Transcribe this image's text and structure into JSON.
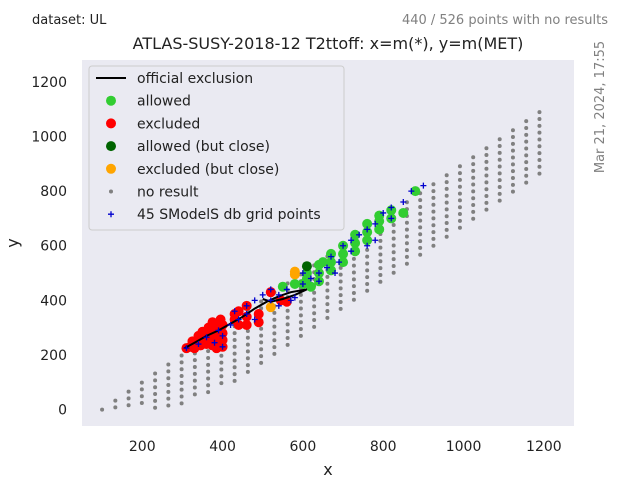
{
  "header": {
    "dataset_label": "dataset: UL",
    "points_info": "440 / 526 points with no results",
    "side_date": "Mar 21, 2024, 17:55"
  },
  "chart_data": {
    "type": "scatter",
    "title": "ATLAS-SUSY-2018-12 T2ttoff: x=m(*), y=m(MET)",
    "xlabel": "x",
    "ylabel": "y",
    "xlim": [
      50,
      1275
    ],
    "ylim": [
      -60,
      1280
    ],
    "xticks": [
      200,
      400,
      600,
      800,
      1000,
      1200
    ],
    "yticks": [
      0,
      200,
      400,
      600,
      800,
      1000,
      1200
    ],
    "grid": false,
    "background": "#eaeaf2",
    "legend_position": "top-left",
    "legend": [
      {
        "label": "official exclusion",
        "kind": "line",
        "color": "#000000"
      },
      {
        "label": "allowed",
        "kind": "dot",
        "color": "#32cd32"
      },
      {
        "label": "excluded",
        "kind": "dot",
        "color": "#ff0000"
      },
      {
        "label": "allowed (but close)",
        "kind": "dot",
        "color": "#006400"
      },
      {
        "label": "excluded (but close)",
        "kind": "dot",
        "color": "#ffa500"
      },
      {
        "label": "no result",
        "kind": "small-dot",
        "color": "#808080"
      },
      {
        "label": "45 SModelS db grid points",
        "kind": "plus",
        "color": "#0000cd"
      }
    ],
    "no_result_grid": {
      "x_start": 100,
      "x_step": 33,
      "x_end": 1200,
      "dy_min": 0,
      "dy_step": 25,
      "dy_max_low": 100,
      "dy_max_high": 225,
      "dy_growth_end_x": 400
    },
    "exclusion_line": [
      [
        305,
        225
      ],
      [
        330,
        245
      ],
      [
        360,
        270
      ],
      [
        390,
        290
      ],
      [
        420,
        315
      ],
      [
        450,
        340
      ],
      [
        480,
        370
      ],
      [
        510,
        395
      ],
      [
        540,
        415
      ],
      [
        570,
        430
      ],
      [
        610,
        440
      ],
      [
        580,
        420
      ],
      [
        550,
        405
      ],
      [
        520,
        395
      ],
      [
        500,
        405
      ]
    ],
    "series": [
      {
        "name": "excluded",
        "color": "#ff0000",
        "points": [
          [
            310,
            225
          ],
          [
            320,
            230
          ],
          [
            330,
            240
          ],
          [
            340,
            250
          ],
          [
            350,
            250
          ],
          [
            355,
            270
          ],
          [
            360,
            240
          ],
          [
            370,
            260
          ],
          [
            370,
            290
          ],
          [
            380,
            250
          ],
          [
            380,
            280
          ],
          [
            385,
            310
          ],
          [
            390,
            240
          ],
          [
            390,
            270
          ],
          [
            395,
            300
          ],
          [
            400,
            230
          ],
          [
            400,
            255
          ],
          [
            400,
            280
          ],
          [
            400,
            310
          ],
          [
            430,
            330
          ],
          [
            430,
            350
          ],
          [
            440,
            310
          ],
          [
            440,
            360
          ],
          [
            460,
            310
          ],
          [
            460,
            340
          ],
          [
            460,
            380
          ],
          [
            490,
            320
          ],
          [
            490,
            350
          ],
          [
            520,
            430
          ],
          [
            545,
            400
          ],
          [
            560,
            395
          ],
          [
            330,
            225
          ],
          [
            345,
            235
          ],
          [
            365,
            245
          ],
          [
            375,
            235
          ],
          [
            385,
            225
          ],
          [
            325,
            250
          ],
          [
            350,
            285
          ],
          [
            365,
            300
          ],
          [
            375,
            320
          ],
          [
            395,
            330
          ],
          [
            340,
            270
          ],
          [
            360,
            280
          ],
          [
            378,
            300
          ],
          [
            392,
            320
          ]
        ]
      },
      {
        "name": "allowed",
        "color": "#32cd32",
        "points": [
          [
            550,
            450
          ],
          [
            580,
            460
          ],
          [
            600,
            460
          ],
          [
            610,
            480
          ],
          [
            610,
            500
          ],
          [
            620,
            450
          ],
          [
            640,
            470
          ],
          [
            640,
            500
          ],
          [
            640,
            530
          ],
          [
            650,
            540
          ],
          [
            670,
            510
          ],
          [
            670,
            540
          ],
          [
            670,
            570
          ],
          [
            700,
            540
          ],
          [
            700,
            570
          ],
          [
            700,
            600
          ],
          [
            730,
            580
          ],
          [
            730,
            610
          ],
          [
            730,
            640
          ],
          [
            760,
            620
          ],
          [
            760,
            650
          ],
          [
            760,
            680
          ],
          [
            790,
            660
          ],
          [
            790,
            690
          ],
          [
            790,
            710
          ],
          [
            820,
            700
          ],
          [
            820,
            730
          ],
          [
            850,
            720
          ],
          [
            880,
            800
          ]
        ]
      },
      {
        "name": "allowed (but close)",
        "color": "#006400",
        "points": [
          [
            610,
            525
          ]
        ]
      },
      {
        "name": "excluded (but close)",
        "color": "#ffa500",
        "points": [
          [
            520,
            375
          ],
          [
            580,
            505
          ],
          [
            580,
            495
          ]
        ]
      },
      {
        "name": "45 SModelS db grid points",
        "color": "#0000cd",
        "points": [
          [
            310,
            225
          ],
          [
            340,
            240
          ],
          [
            360,
            265
          ],
          [
            380,
            245
          ],
          [
            390,
            290
          ],
          [
            400,
            230
          ],
          [
            400,
            270
          ],
          [
            420,
            310
          ],
          [
            440,
            330
          ],
          [
            460,
            350
          ],
          [
            480,
            330
          ],
          [
            500,
            420
          ],
          [
            520,
            400
          ],
          [
            540,
            380
          ],
          [
            560,
            440
          ],
          [
            580,
            410
          ],
          [
            600,
            460
          ],
          [
            620,
            480
          ],
          [
            640,
            500
          ],
          [
            660,
            520
          ],
          [
            670,
            560
          ],
          [
            690,
            540
          ],
          [
            700,
            600
          ],
          [
            720,
            580
          ],
          [
            740,
            640
          ],
          [
            760,
            600
          ],
          [
            780,
            680
          ],
          [
            800,
            720
          ],
          [
            820,
            700
          ],
          [
            850,
            760
          ],
          [
            870,
            800
          ],
          [
            900,
            820
          ],
          [
            460,
            380
          ],
          [
            430,
            360
          ],
          [
            480,
            400
          ],
          [
            520,
            440
          ],
          [
            540,
            420
          ],
          [
            570,
            400
          ],
          [
            600,
            500
          ],
          [
            640,
            470
          ],
          [
            680,
            500
          ],
          [
            720,
            620
          ],
          [
            760,
            660
          ],
          [
            780,
            620
          ],
          [
            820,
            740
          ]
        ]
      }
    ]
  }
}
